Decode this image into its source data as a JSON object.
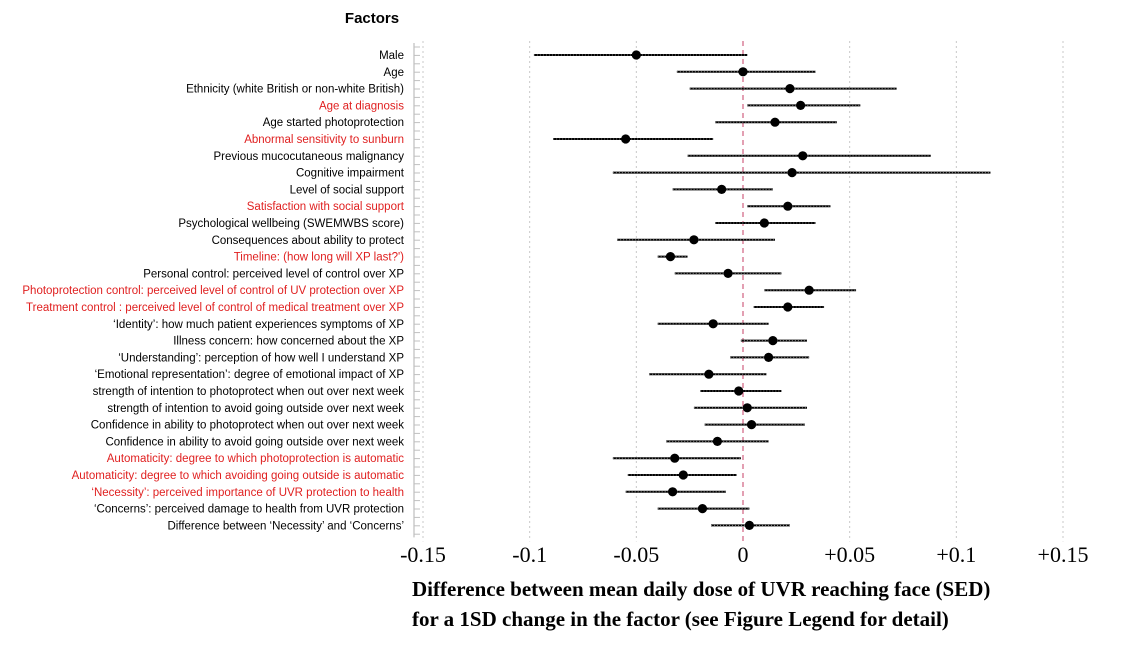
{
  "chart_data": {
    "type": "forest",
    "legend_title": "Factors",
    "xlabel_lines": [
      "Difference between mean daily dose of UVR reaching face (SED)",
      "for a 1SD change in the factor (see Figure Legend for detail)"
    ],
    "xlim": [
      -0.15,
      0.15
    ],
    "ticks": [
      {
        "value": -0.15,
        "label": "-0.15"
      },
      {
        "value": -0.1,
        "label": "-0.1"
      },
      {
        "value": -0.05,
        "label": "-0.05"
      },
      {
        "value": 0,
        "label": "0"
      },
      {
        "value": 0.05,
        "label": "+0.05"
      },
      {
        "value": 0.1,
        "label": "+0.1"
      },
      {
        "value": 0.15,
        "label": "+0.15"
      }
    ],
    "grid": true,
    "reference_line": 0,
    "colors": {
      "default_label": "#000000",
      "highlight_label": "#e02020",
      "point": "#000000",
      "ci": "#000000",
      "reference": "#d06080",
      "grid": "#c8c8c8"
    },
    "rows": [
      {
        "label": "Male",
        "estimate": -0.05,
        "lower": -0.098,
        "upper": 0.002,
        "highlight": false
      },
      {
        "label": "Age",
        "estimate": 0.0,
        "lower": -0.031,
        "upper": 0.034,
        "highlight": false
      },
      {
        "label": "Ethnicity (white British or non-white British)",
        "estimate": 0.022,
        "lower": -0.025,
        "upper": 0.072,
        "highlight": false
      },
      {
        "label": "Age at diagnosis",
        "estimate": 0.027,
        "lower": 0.002,
        "upper": 0.055,
        "highlight": true
      },
      {
        "label": "Age started photoprotection",
        "estimate": 0.015,
        "lower": -0.013,
        "upper": 0.044,
        "highlight": false
      },
      {
        "label": "Abnormal sensitivity to sunburn",
        "estimate": -0.055,
        "lower": -0.089,
        "upper": -0.014,
        "highlight": true
      },
      {
        "label": "Previous  mucocutaneous malignancy",
        "estimate": 0.028,
        "lower": -0.026,
        "upper": 0.088,
        "highlight": false
      },
      {
        "label": "Cognitive  impairment",
        "estimate": 0.023,
        "lower": -0.061,
        "upper": 0.116,
        "highlight": false
      },
      {
        "label": "Level of social support",
        "estimate": -0.01,
        "lower": -0.033,
        "upper": 0.014,
        "highlight": false
      },
      {
        "label": "Satisfaction with social support",
        "estimate": 0.021,
        "lower": 0.002,
        "upper": 0.041,
        "highlight": true
      },
      {
        "label": "Psychological wellbeing  (SWEMWBS score)",
        "estimate": 0.01,
        "lower": -0.013,
        "upper": 0.034,
        "highlight": false
      },
      {
        "label": "Consequences about ability to protect",
        "estimate": -0.023,
        "lower": -0.059,
        "upper": 0.015,
        "highlight": false
      },
      {
        "label": "Timeline: (how long will XP last?')",
        "estimate": -0.034,
        "lower": -0.04,
        "upper": -0.026,
        "highlight": true
      },
      {
        "label": "Personal control: perceived level of control over XP",
        "estimate": -0.007,
        "lower": -0.032,
        "upper": 0.018,
        "highlight": false
      },
      {
        "label": "Photoprotection  control: perceived level  of control of UV protection over XP",
        "estimate": 0.031,
        "lower": 0.01,
        "upper": 0.053,
        "highlight": true
      },
      {
        "label": "Treatment  control : perceived  level of control of medical treatment over XP",
        "estimate": 0.021,
        "lower": 0.005,
        "upper": 0.038,
        "highlight": true
      },
      {
        "label": "‘Identity’: how much patient experiences symptoms of XP",
        "estimate": -0.014,
        "lower": -0.04,
        "upper": 0.012,
        "highlight": false
      },
      {
        "label": "Illness concern: how concerned about the XP",
        "estimate": 0.014,
        "lower": -0.001,
        "upper": 0.03,
        "highlight": false
      },
      {
        "label": "‘Understanding’: perception of how well I understand XP",
        "estimate": 0.012,
        "lower": -0.006,
        "upper": 0.031,
        "highlight": false
      },
      {
        "label": "‘Emotional  representation’:  degree  of emotional impact of XP",
        "estimate": -0.016,
        "lower": -0.044,
        "upper": 0.011,
        "highlight": false
      },
      {
        "label": "strength of intention to photoprotect   when out over  next week",
        "estimate": -0.002,
        "lower": -0.02,
        "upper": 0.018,
        "highlight": false
      },
      {
        "label": "strength of intention  to avoid  going outside over  next week",
        "estimate": 0.002,
        "lower": -0.023,
        "upper": 0.03,
        "highlight": false
      },
      {
        "label": "Confidence in ability to photoprotect  when out over next week",
        "estimate": 0.004,
        "lower": -0.018,
        "upper": 0.029,
        "highlight": false
      },
      {
        "label": "Confidence in ability to avoid going outside over  next week",
        "estimate": -0.012,
        "lower": -0.036,
        "upper": 0.012,
        "highlight": false
      },
      {
        "label": "Automaticity: degree to which photoprotection is automatic",
        "estimate": -0.032,
        "lower": -0.061,
        "upper": -0.001,
        "highlight": true
      },
      {
        "label": "Automaticity: degree to which avoiding going outside is automatic",
        "estimate": -0.028,
        "lower": -0.054,
        "upper": -0.003,
        "highlight": true
      },
      {
        "label": "‘Necessity’: perceived importance of UVR protection to health",
        "estimate": -0.033,
        "lower": -0.055,
        "upper": -0.008,
        "highlight": true
      },
      {
        "label": "‘Concerns’: perceived damage to health from UVR protection",
        "estimate": -0.019,
        "lower": -0.04,
        "upper": 0.003,
        "highlight": false
      },
      {
        "label": "Difference between ‘Necessity’ and ‘Concerns’",
        "estimate": 0.003,
        "lower": -0.015,
        "upper": 0.022,
        "highlight": false
      }
    ]
  }
}
